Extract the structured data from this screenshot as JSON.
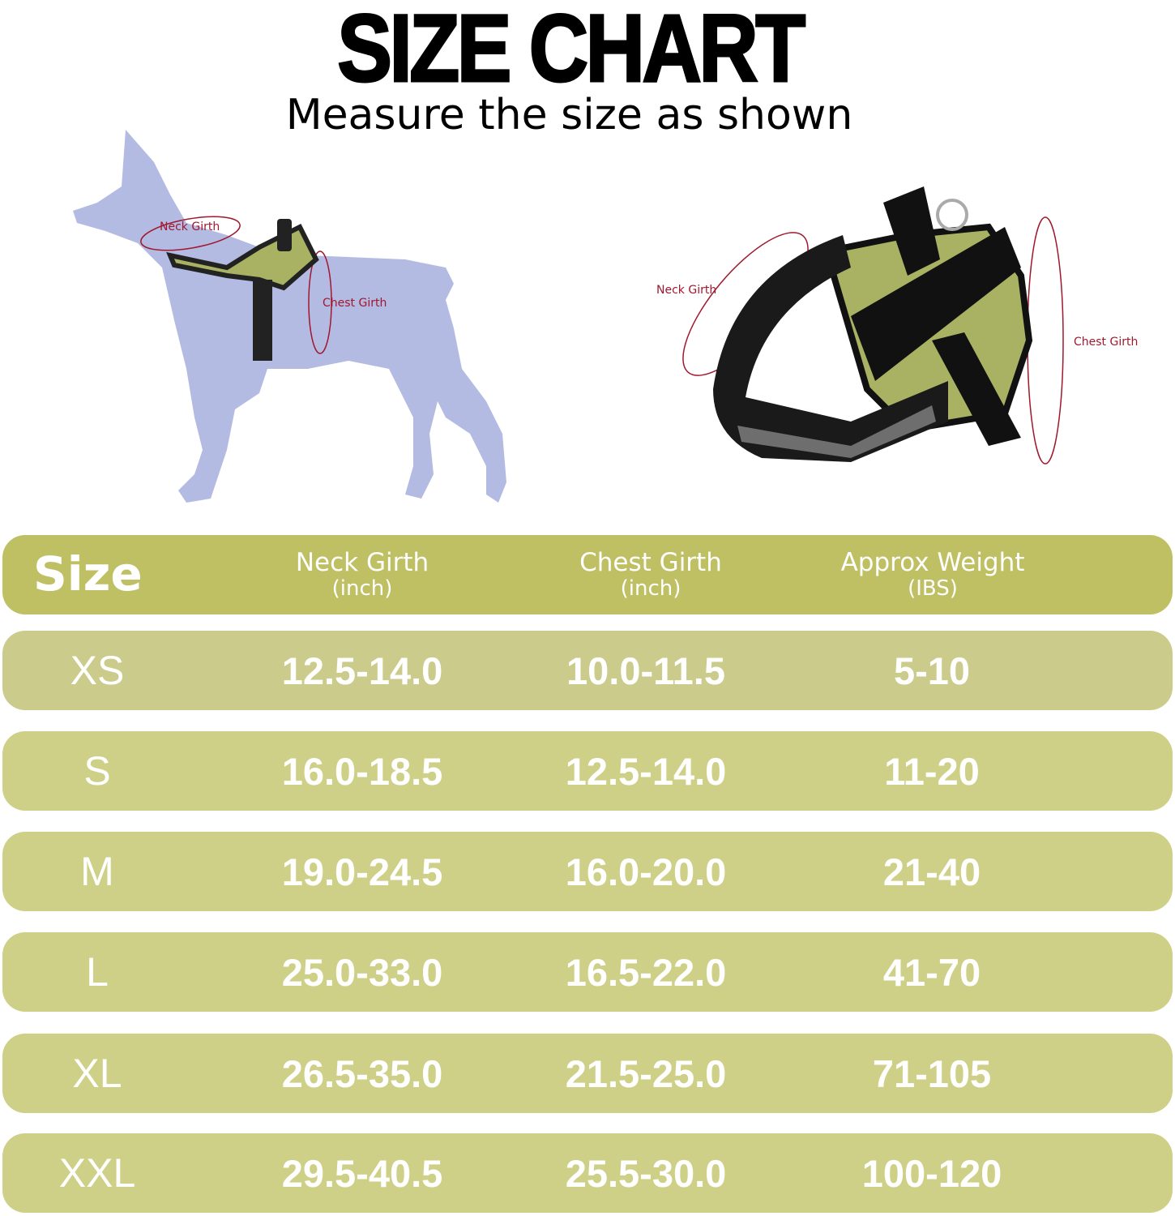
{
  "title": "SIZE CHART",
  "subtitle": "Measure the size as shown",
  "diagram_labels": {
    "dog_neck": "Neck Girth",
    "dog_chest": "Chest Girth",
    "harness_neck": "Neck Girth",
    "harness_chest": "Chest Girth"
  },
  "colors": {
    "header_row": "#bfc063",
    "data_row": "#cfd087",
    "dog_silhouette": "#b3bbe3",
    "measure_line": "#a0182e",
    "harness_accent": "#a9b262"
  },
  "table": {
    "headers": [
      {
        "main": "Size",
        "sub": ""
      },
      {
        "main": "Neck Girth",
        "sub": "(inch)"
      },
      {
        "main": "Chest Girth",
        "sub": "(inch)"
      },
      {
        "main": "Approx Weight",
        "sub": "(IBS)"
      }
    ],
    "rows": [
      {
        "size": "XS",
        "neck": "12.5-14.0",
        "chest": "10.0-11.5",
        "weight": "5-10"
      },
      {
        "size": "S",
        "neck": "16.0-18.5",
        "chest": "12.5-14.0",
        "weight": "11-20"
      },
      {
        "size": "M",
        "neck": "19.0-24.5",
        "chest": "16.0-20.0",
        "weight": "21-40"
      },
      {
        "size": "L",
        "neck": "25.0-33.0",
        "chest": "16.5-22.0",
        "weight": "41-70"
      },
      {
        "size": "XL",
        "neck": "26.5-35.0",
        "chest": "21.5-25.0",
        "weight": "71-105"
      },
      {
        "size": "XXL",
        "neck": "29.5-40.5",
        "chest": "25.5-30.0",
        "weight": "100-120"
      }
    ]
  }
}
